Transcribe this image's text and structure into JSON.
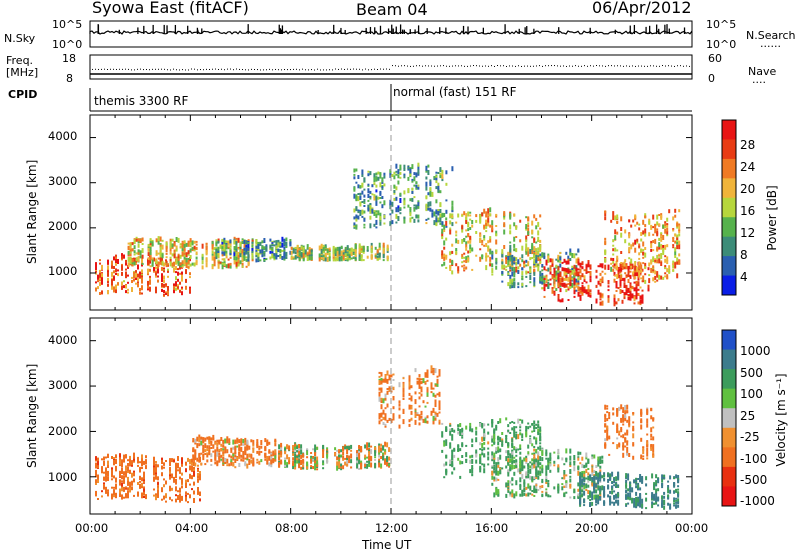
{
  "header": {
    "radar": "Syowa East (fitACF)",
    "beam": "Beam 04",
    "date": "06/Apr/2012"
  },
  "nsky_panel": {
    "left_label": "N.Sky",
    "left_ticks": [
      "10^5",
      "10^0"
    ],
    "right_ticks": [
      "10^5",
      "10^0"
    ],
    "right_label": "N.Search",
    "right_legend": "......"
  },
  "freq_panel": {
    "left_label_line1": "Freq.",
    "left_label_line2": "[MHz]",
    "left_ticks": [
      "18",
      "8"
    ],
    "right_ticks": [
      "60",
      "0"
    ],
    "right_label": "Nave",
    "right_legend": "...."
  },
  "cpid_panel": {
    "label": "CPID",
    "modes": [
      {
        "name": "themis 3300 RF",
        "start_hour": 0
      },
      {
        "name": "normal (fast) 151 RF",
        "start_hour": 12
      }
    ]
  },
  "time_axis": {
    "ticks": [
      "00:00",
      "04:00",
      "08:00",
      "12:00",
      "16:00",
      "20:00",
      "00:00"
    ],
    "label": "Time UT"
  },
  "chart_data": [
    {
      "type": "heatmap",
      "name": "power",
      "ylabel": "Slant Range [km]",
      "yticks": [
        "1000",
        "2000",
        "3000",
        "4000"
      ],
      "ylim": [
        180,
        4500
      ],
      "xlim_hours": [
        0,
        24
      ],
      "colorbar_label": "Power [dB]",
      "colorbar_ticks": [
        "4",
        "8",
        "12",
        "16",
        "20",
        "24",
        "28"
      ],
      "colorbar_range": [
        0,
        30
      ],
      "colors": [
        "#0a1ee6",
        "#2a5fb0",
        "#3c8c78",
        "#56b24c",
        "#b6d63c",
        "#f0b43a",
        "#f07a23",
        "#e83c14",
        "#e81414"
      ],
      "echo_bands": [
        {
          "t": [
            0.2,
            4.0
          ],
          "range": [
            500,
            1300
          ],
          "value": 23
        },
        {
          "t": [
            1.5,
            6.5
          ],
          "range": [
            1100,
            1700
          ],
          "value": 18
        },
        {
          "t": [
            5.0,
            8.0
          ],
          "range": [
            1250,
            1700
          ],
          "value": 9
        },
        {
          "t": [
            8.0,
            12.0
          ],
          "range": [
            1250,
            1550
          ],
          "value": 14
        },
        {
          "t": [
            10.5,
            14.5
          ],
          "range": [
            2000,
            3300
          ],
          "value": 10
        },
        {
          "t": [
            14.0,
            18.0
          ],
          "range": [
            1000,
            2300
          ],
          "value": 18
        },
        {
          "t": [
            16.0,
            19.5
          ],
          "range": [
            600,
            1500
          ],
          "value": 11
        },
        {
          "t": [
            18.0,
            22.5
          ],
          "range": [
            300,
            1200
          ],
          "value": 26
        },
        {
          "t": [
            20.5,
            23.5
          ],
          "range": [
            800,
            2300
          ],
          "value": 20
        }
      ]
    },
    {
      "type": "heatmap",
      "name": "velocity",
      "ylabel": "Slant Range [km]",
      "yticks": [
        "1000",
        "2000",
        "3000",
        "4000"
      ],
      "ylim": [
        180,
        4500
      ],
      "xlim_hours": [
        0,
        24
      ],
      "colorbar_label": "Velocity [m s⁻¹]",
      "colorbar_ticks": [
        "1000",
        "500",
        "100",
        "25",
        "-25",
        "-100",
        "-500",
        "-1000"
      ],
      "colors": [
        "#2050c8",
        "#3c7c8c",
        "#3c9c5c",
        "#60c040",
        "#c0c0c0",
        "#f09030",
        "#f07020",
        "#e83010",
        "#e81414"
      ],
      "echo_bands": [
        {
          "t": [
            0.2,
            4.5
          ],
          "range": [
            450,
            1400
          ],
          "value": -300
        },
        {
          "t": [
            4.0,
            7.5
          ],
          "range": [
            1200,
            1800
          ],
          "value": -200
        },
        {
          "t": [
            7.5,
            12.0
          ],
          "range": [
            1150,
            1650
          ],
          "value": 0
        },
        {
          "t": [
            11.5,
            14.0
          ],
          "range": [
            2100,
            3300
          ],
          "value": -200
        },
        {
          "t": [
            14.0,
            18.0
          ],
          "range": [
            1000,
            2200
          ],
          "value": 200
        },
        {
          "t": [
            16.0,
            20.5
          ],
          "range": [
            500,
            1500
          ],
          "value": 150
        },
        {
          "t": [
            19.5,
            23.5
          ],
          "range": [
            300,
            1000
          ],
          "value": 600
        },
        {
          "t": [
            20.5,
            22.5
          ],
          "range": [
            1400,
            2500
          ],
          "value": -250
        }
      ]
    }
  ]
}
